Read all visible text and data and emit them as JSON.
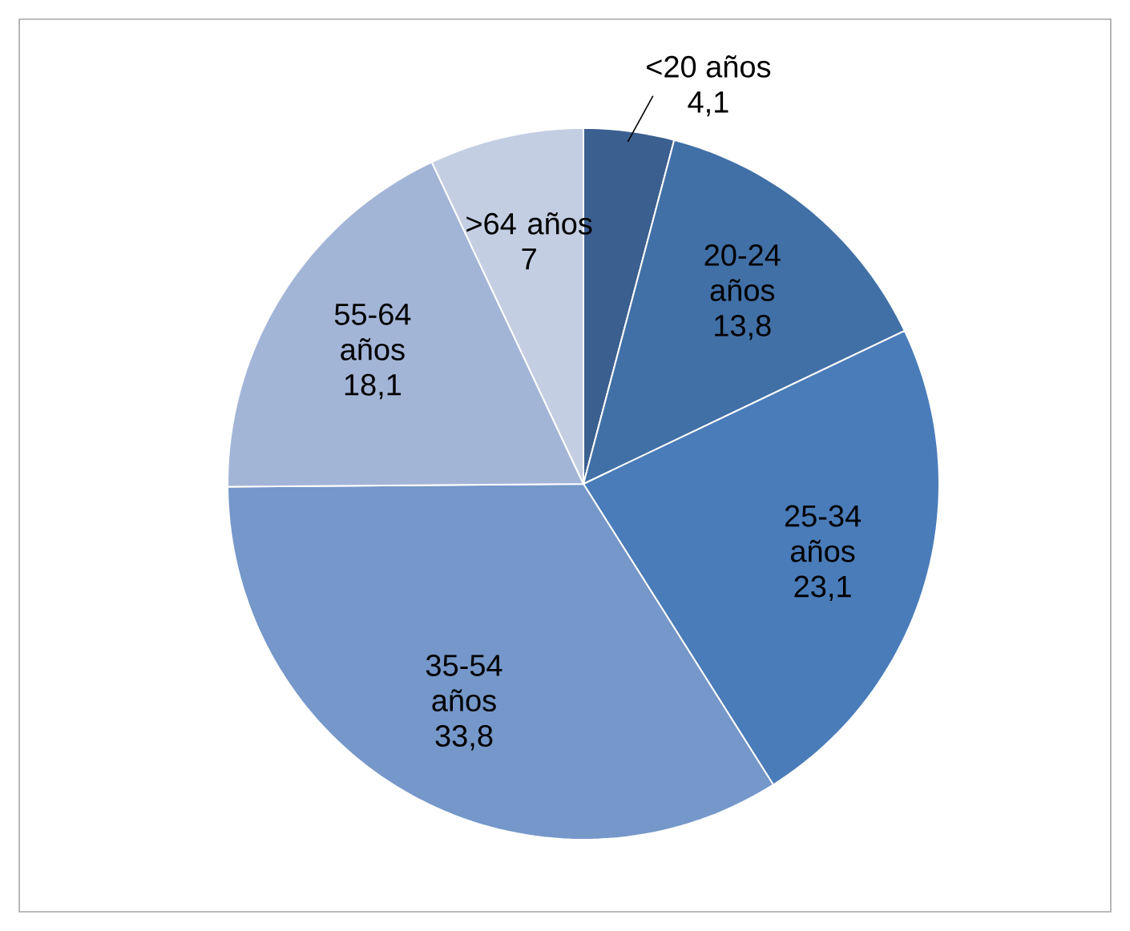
{
  "chart_data": {
    "type": "pie",
    "categories": [
      "<20 años",
      "20-24 años",
      "25-34 años",
      "35-54 años",
      "55-64 años",
      ">64 años"
    ],
    "values": [
      4.1,
      13.8,
      23.1,
      33.8,
      18.1,
      7
    ],
    "value_labels": [
      "4,1",
      "13,8",
      "23,1",
      "33,8",
      "18,1",
      "7"
    ],
    "colors": [
      "#3b5f8f",
      "#4170a6",
      "#4a7cb9",
      "#7597c9",
      "#a3b5d7",
      "#c4cee3"
    ]
  }
}
